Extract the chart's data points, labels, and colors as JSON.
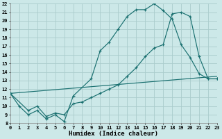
{
  "xlabel": "Humidex (Indice chaleur)",
  "bg_color": "#cce8e8",
  "grid_color": "#aacccc",
  "line_color": "#1a7070",
  "xmin": 0,
  "xmax": 23,
  "ymin": 8,
  "ymax": 22,
  "line1_x": [
    0,
    1,
    2,
    3,
    4,
    5,
    6,
    7,
    9,
    10,
    11,
    12,
    13,
    14,
    15,
    16,
    17,
    18,
    19,
    20,
    21,
    22,
    23
  ],
  "line1_y": [
    11.5,
    10,
    9,
    9.5,
    8.5,
    9,
    8.2,
    11.2,
    13.2,
    16.5,
    17.5,
    19.0,
    20.5,
    21.3,
    21.3,
    22.0,
    21.2,
    20.2,
    17.2,
    15.7,
    13.8,
    13.2,
    13.2
  ],
  "line2_x": [
    0,
    2,
    3,
    4,
    5,
    6,
    7,
    8,
    9,
    10,
    11,
    12,
    13,
    14,
    15,
    16,
    17,
    18,
    19,
    20,
    21,
    22,
    23
  ],
  "line2_y": [
    11.5,
    9.5,
    10.0,
    8.8,
    9.2,
    9.0,
    10.3,
    10.5,
    11.0,
    11.5,
    12.0,
    12.5,
    13.5,
    14.5,
    15.8,
    16.8,
    17.2,
    20.8,
    21.0,
    20.5,
    15.8,
    13.2,
    13.2
  ],
  "line3_x": [
    0,
    23
  ],
  "line3_y": [
    11.5,
    13.5
  ],
  "xticks": [
    0,
    1,
    2,
    3,
    4,
    5,
    6,
    7,
    8,
    9,
    10,
    11,
    12,
    13,
    14,
    15,
    16,
    17,
    18,
    19,
    20,
    21,
    22,
    23
  ],
  "yticks": [
    8,
    9,
    10,
    11,
    12,
    13,
    14,
    15,
    16,
    17,
    18,
    19,
    20,
    21,
    22
  ]
}
